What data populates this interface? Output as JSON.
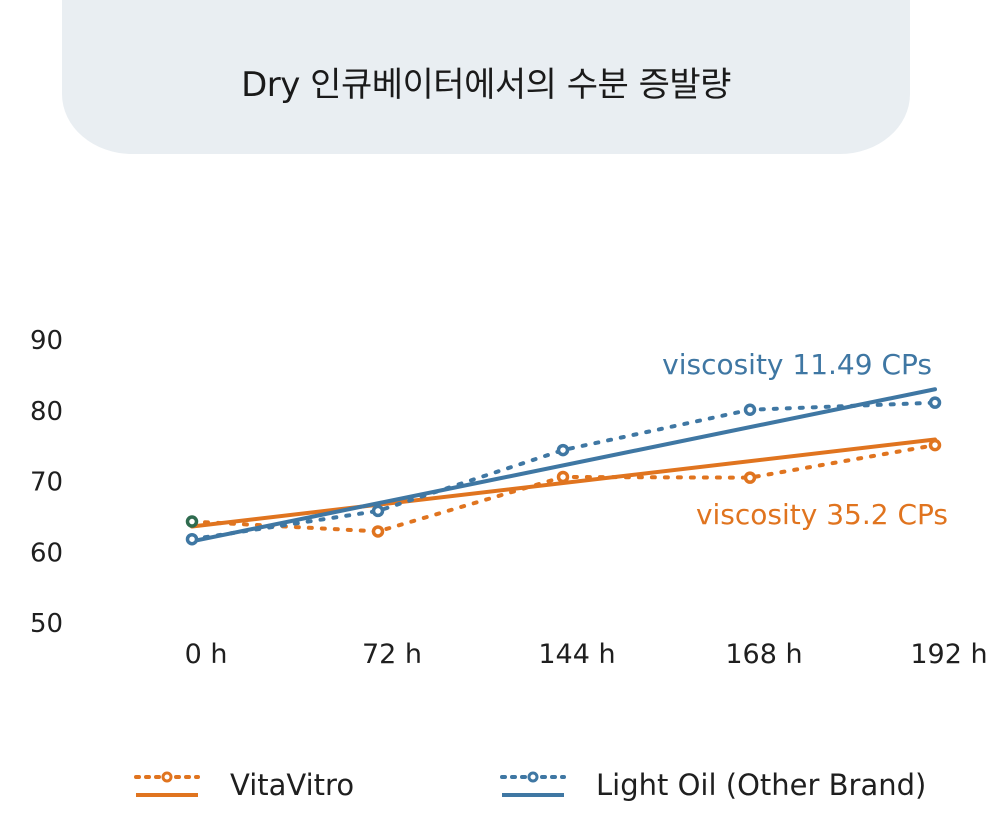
{
  "title": "Dry 인큐베이터에서의 수분 증발량",
  "colors": {
    "vitavitro": "#e0741f",
    "lightoil": "#3f77a3",
    "start_marker": "#2f6b4f",
    "title_bg": "#e9eef2"
  },
  "chart_data": {
    "type": "line",
    "categories": [
      "0 h",
      "72 h",
      "144 h",
      "168 h",
      "192 h"
    ],
    "y_ticks": [
      "90",
      "80",
      "70",
      "60",
      "50"
    ],
    "ylim": [
      50,
      90
    ],
    "grid": false,
    "legend_position": "bottom",
    "series": [
      {
        "name": "VitaVitro",
        "values": [
          64.2,
          62.8,
          70.5,
          70.4,
          75.0
        ],
        "trendline": [
          63.5,
          75.8
        ],
        "annotation": "viscosity 35.2 CPs"
      },
      {
        "name": "Light Oil (Other Brand)",
        "values": [
          61.7,
          65.7,
          74.3,
          80.0,
          81.0
        ],
        "trendline": [
          61.4,
          82.9
        ],
        "annotation": "viscosity 11.49 CPs"
      }
    ]
  }
}
